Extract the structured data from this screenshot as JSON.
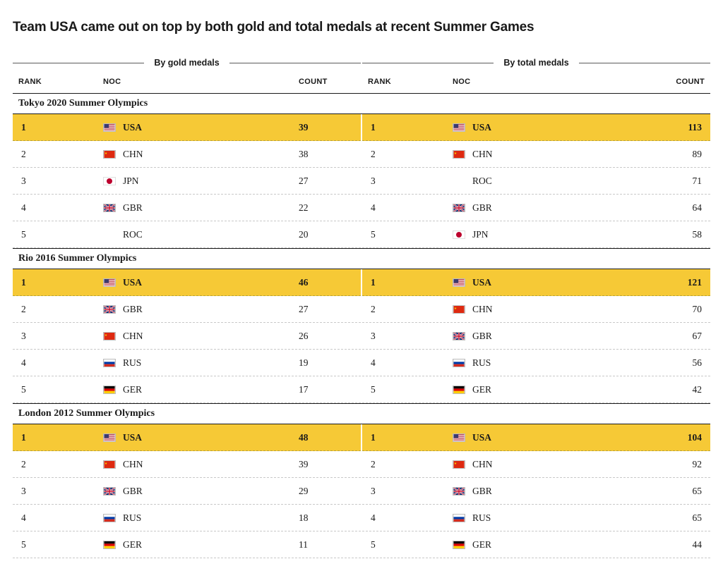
{
  "title": "Team USA came out on top by both gold and total medals at recent Summer Games",
  "columns": {
    "rank": "RANK",
    "noc": "NOC",
    "count": "COUNT"
  },
  "highlight_color": "#f6c936",
  "flags": {
    "USA": {
      "type": "svg",
      "svg": "<svg viewBox='0 0 18 12'><rect width='18' height='12' fill='#b22234'/><rect y='1' width='18' height='1' fill='#fff'/><rect y='3' width='18' height='1' fill='#fff'/><rect y='5' width='18' height='1' fill='#fff'/><rect y='7' width='18' height='1' fill='#fff'/><rect y='9' width='18' height='1' fill='#fff'/><rect y='11' width='18' height='1' fill='#fff'/><rect width='8' height='6.5' fill='#3c3b6e'/></svg>"
    },
    "CHN": {
      "type": "svg",
      "svg": "<svg viewBox='0 0 18 12'><rect width='18' height='12' fill='#de2910'/><polygon points='3,2 3.5,3.4 5,3.4 3.8,4.3 4.2,5.7 3,4.9 1.8,5.7 2.2,4.3 1,3.4 2.5,3.4' fill='#ffde00'/></svg>"
    },
    "JPN": {
      "type": "class",
      "class": "jpn"
    },
    "GBR": {
      "type": "svg",
      "svg": "<svg viewBox='0 0 18 12'><rect width='18' height='12' fill='#012169'/><path d='M0,0 L18,12 M18,0 L0,12' stroke='#fff' stroke-width='2.5'/><path d='M0,0 L18,12 M18,0 L0,12' stroke='#c8102e' stroke-width='1'/><rect x='7.5' width='3' height='12' fill='#fff'/><rect y='4.5' width='18' height='3' fill='#fff'/><rect x='8.1' width='1.8' height='12' fill='#c8102e'/><rect y='5.1' width='18' height='1.8' fill='#c8102e'/></svg>"
    },
    "ROC": {
      "type": "class",
      "class": "roc"
    },
    "RUS": {
      "type": "svg",
      "svg": "<svg viewBox='0 0 18 12'><rect width='18' height='4' fill='#fff'/><rect y='4' width='18' height='4' fill='#0039a6'/><rect y='8' width='18' height='4' fill='#d52b1e'/></svg>"
    },
    "GER": {
      "type": "svg",
      "svg": "<svg viewBox='0 0 18 12'><rect width='18' height='4' fill='#000'/><rect y='4' width='18' height='4' fill='#dd0000'/><rect y='8' width='18' height='4' fill='#ffce00'/></svg>"
    }
  },
  "panels": [
    {
      "header": "By gold medals",
      "sections": [
        {
          "title": "Tokyo 2020 Summer Olympics",
          "rows": [
            {
              "rank": 1,
              "noc": "USA",
              "count": 39,
              "highlight": true
            },
            {
              "rank": 2,
              "noc": "CHN",
              "count": 38
            },
            {
              "rank": 3,
              "noc": "JPN",
              "count": 27
            },
            {
              "rank": 4,
              "noc": "GBR",
              "count": 22
            },
            {
              "rank": 5,
              "noc": "ROC",
              "count": 20
            }
          ]
        },
        {
          "title": "Rio 2016 Summer Olympics",
          "rows": [
            {
              "rank": 1,
              "noc": "USA",
              "count": 46,
              "highlight": true
            },
            {
              "rank": 2,
              "noc": "GBR",
              "count": 27
            },
            {
              "rank": 3,
              "noc": "CHN",
              "count": 26
            },
            {
              "rank": 4,
              "noc": "RUS",
              "count": 19
            },
            {
              "rank": 5,
              "noc": "GER",
              "count": 17
            }
          ]
        },
        {
          "title": "London 2012 Summer Olympics",
          "rows": [
            {
              "rank": 1,
              "noc": "USA",
              "count": 48,
              "highlight": true
            },
            {
              "rank": 2,
              "noc": "CHN",
              "count": 39
            },
            {
              "rank": 3,
              "noc": "GBR",
              "count": 29
            },
            {
              "rank": 4,
              "noc": "RUS",
              "count": 18
            },
            {
              "rank": 5,
              "noc": "GER",
              "count": 11
            }
          ]
        }
      ]
    },
    {
      "header": "By total medals",
      "sections": [
        {
          "title": "",
          "rows": [
            {
              "rank": 1,
              "noc": "USA",
              "count": 113,
              "highlight": true
            },
            {
              "rank": 2,
              "noc": "CHN",
              "count": 89
            },
            {
              "rank": 3,
              "noc": "ROC",
              "count": 71
            },
            {
              "rank": 4,
              "noc": "GBR",
              "count": 64
            },
            {
              "rank": 5,
              "noc": "JPN",
              "count": 58
            }
          ]
        },
        {
          "title": "",
          "rows": [
            {
              "rank": 1,
              "noc": "USA",
              "count": 121,
              "highlight": true
            },
            {
              "rank": 2,
              "noc": "CHN",
              "count": 70
            },
            {
              "rank": 3,
              "noc": "GBR",
              "count": 67
            },
            {
              "rank": 4,
              "noc": "RUS",
              "count": 56
            },
            {
              "rank": 5,
              "noc": "GER",
              "count": 42
            }
          ]
        },
        {
          "title": "",
          "rows": [
            {
              "rank": 1,
              "noc": "USA",
              "count": 104,
              "highlight": true
            },
            {
              "rank": 2,
              "noc": "CHN",
              "count": 92
            },
            {
              "rank": 3,
              "noc": "GBR",
              "count": 65
            },
            {
              "rank": 4,
              "noc": "RUS",
              "count": 65
            },
            {
              "rank": 5,
              "noc": "GER",
              "count": 44
            }
          ]
        }
      ]
    }
  ]
}
